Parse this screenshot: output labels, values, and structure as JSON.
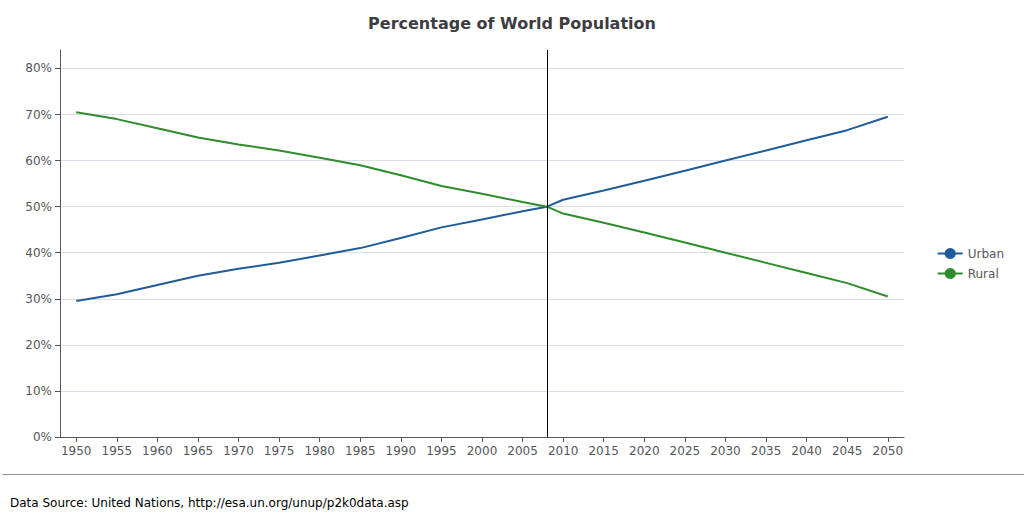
{
  "chart_data": {
    "type": "line",
    "title": "Percentage of World Population",
    "x": [
      1950,
      1955,
      1960,
      1965,
      1970,
      1975,
      1980,
      1985,
      1990,
      1995,
      2000,
      2005,
      2008,
      2010,
      2015,
      2020,
      2025,
      2030,
      2035,
      2040,
      2045,
      2050
    ],
    "series": [
      {
        "name": "Urban",
        "color": "#1F5C99",
        "values": [
          0.295,
          0.31,
          0.33,
          0.35,
          0.365,
          0.378,
          0.394,
          0.41,
          0.432,
          0.455,
          0.472,
          0.49,
          0.5,
          0.515,
          0.535,
          0.556,
          0.578,
          0.6,
          0.622,
          0.644,
          0.666,
          0.695
        ]
      },
      {
        "name": "Rural",
        "color": "#2E8B2E",
        "values": [
          0.705,
          0.69,
          0.67,
          0.65,
          0.635,
          0.622,
          0.606,
          0.59,
          0.568,
          0.545,
          0.528,
          0.51,
          0.5,
          0.485,
          0.465,
          0.444,
          0.422,
          0.4,
          0.378,
          0.356,
          0.334,
          0.305
        ]
      }
    ],
    "vline": {
      "x": 2008,
      "color": "#000000"
    },
    "xlim": [
      1948,
      2052
    ],
    "xticks": [
      1950,
      1955,
      1960,
      1965,
      1970,
      1975,
      1980,
      1985,
      1990,
      1995,
      2000,
      2005,
      2010,
      2015,
      2020,
      2025,
      2030,
      2035,
      2040,
      2045,
      2050
    ],
    "ylim": [
      0,
      0.84
    ],
    "yticks": [
      {
        "value": 0.0,
        "label": "0%"
      },
      {
        "value": 0.1,
        "label": "10%"
      },
      {
        "value": 0.2,
        "label": "20%"
      },
      {
        "value": 0.3,
        "label": "30%"
      },
      {
        "value": 0.4,
        "label": "40%"
      },
      {
        "value": 0.5,
        "label": "50%"
      },
      {
        "value": 0.6,
        "label": "60%"
      },
      {
        "value": 0.7,
        "label": "70%"
      },
      {
        "value": 0.8,
        "label": "80%"
      }
    ],
    "grid": true,
    "legend": "right",
    "annotations": [
      "Data Source: United Nations, http://esa.un.org/unup/p2k0data.asp"
    ]
  }
}
